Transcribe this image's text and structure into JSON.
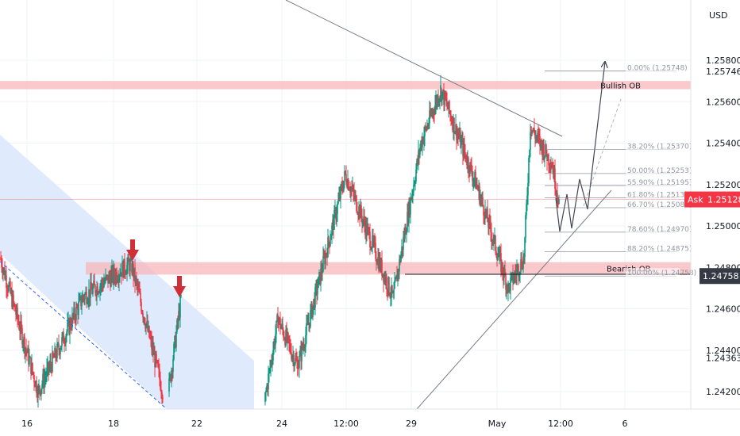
{
  "chart_data": {
    "type": "candlestick",
    "currency": "USD",
    "ylim": [
      1.2415,
      1.2595
    ],
    "y_ticks": [
      {
        "label": "1.25800",
        "value": 1.258
      },
      {
        "label": "1.25746",
        "value": 1.25746
      },
      {
        "label": "1.25600",
        "value": 1.256
      },
      {
        "label": "1.25400",
        "value": 1.254
      },
      {
        "label": "1.25200",
        "value": 1.252
      },
      {
        "label": "1.25000",
        "value": 1.25
      },
      {
        "label": "1.24800",
        "value": 1.248
      },
      {
        "label": "1.24600",
        "value": 1.246
      },
      {
        "label": "1.24400",
        "value": 1.244
      },
      {
        "label": "1.24363",
        "value": 1.24363
      },
      {
        "label": "1.24200",
        "value": 1.242
      }
    ],
    "x_ticks": [
      "16",
      "18",
      "22",
      "24",
      "12:00",
      "29",
      "May",
      "12:00",
      "6"
    ],
    "ask": {
      "label": "Ask",
      "value": "1.25128",
      "price": 1.25128,
      "color": "#f23645"
    },
    "current_price_tag": {
      "value": "1.24758",
      "price": 1.24758,
      "color": "#363a45"
    },
    "zones": [
      {
        "label": "Bullish OB",
        "top": 1.257,
        "bottom": 1.2566,
        "color": "#f7b7bb"
      },
      {
        "label": "Bearish OB",
        "top": 1.24825,
        "bottom": 1.24765,
        "color": "#f7b7bb"
      }
    ],
    "fib_levels": [
      {
        "label": "0.00% (1.25748)",
        "price": 1.25748
      },
      {
        "label": "38.20% (1.25370)",
        "price": 1.2537
      },
      {
        "label": "50.00% (1.25253)",
        "price": 1.25253
      },
      {
        "label": "55.90% (1.25195)",
        "price": 1.25195
      },
      {
        "label": "61.80% (1.25136)",
        "price": 1.25136
      },
      {
        "label": "66.70% (1.25088)",
        "price": 1.25088
      },
      {
        "label": "78.60% (1.24970)",
        "price": 1.2497
      },
      {
        "label": "88.20% (1.24875)",
        "price": 1.24875
      },
      {
        "label": "100.00% (1.24758)",
        "price": 1.24758
      }
    ],
    "colors": {
      "up": "#089981",
      "down": "#f23645",
      "channel": "#dbe6fd",
      "arrow": "#d12f36"
    },
    "segments": [
      {
        "from": [
          0,
          1.2485
        ],
        "to": [
          48,
          1.242
        ],
        "n": 48
      },
      {
        "from": [
          48,
          1.242
        ],
        "to": [
          105,
          1.2466
        ],
        "n": 57
      },
      {
        "from": [
          105,
          1.2466
        ],
        "to": [
          165,
          1.2482
        ],
        "n": 60
      },
      {
        "from": [
          165,
          1.2482
        ],
        "to": [
          205,
          1.242
        ],
        "n": 40
      },
      {
        "from": [
          212,
          1.242
        ],
        "to": [
          228,
          1.2465
        ],
        "n": 16
      },
      {
        "from": [
          333,
          1.2415
        ],
        "to": [
          350,
          1.2455
        ],
        "n": 17
      },
      {
        "from": [
          350,
          1.2455
        ],
        "to": [
          375,
          1.2432
        ],
        "n": 25
      },
      {
        "from": [
          375,
          1.2432
        ],
        "to": [
          435,
          1.2525
        ],
        "n": 60
      },
      {
        "from": [
          435,
          1.2525
        ],
        "to": [
          495,
          1.2465
        ],
        "n": 60
      },
      {
        "from": [
          495,
          1.2465
        ],
        "to": [
          530,
          1.254
        ],
        "n": 35
      },
      {
        "from": [
          530,
          1.254
        ],
        "to": [
          555,
          1.2566
        ],
        "n": 25
      },
      {
        "from": [
          555,
          1.2566
        ],
        "to": [
          600,
          1.252
        ],
        "n": 45
      },
      {
        "from": [
          600,
          1.252
        ],
        "to": [
          640,
          1.247
        ],
        "n": 40
      },
      {
        "from": [
          640,
          1.247
        ],
        "to": [
          660,
          1.2485
        ],
        "n": 20
      },
      {
        "from": [
          660,
          1.2485
        ],
        "to": [
          668,
          1.2548
        ],
        "n": 8
      },
      {
        "from": [
          668,
          1.2548
        ],
        "to": [
          695,
          1.253
        ],
        "n": 27
      },
      {
        "from": [
          695,
          1.253
        ],
        "to": [
          704,
          1.2512
        ],
        "n": 9
      }
    ]
  }
}
